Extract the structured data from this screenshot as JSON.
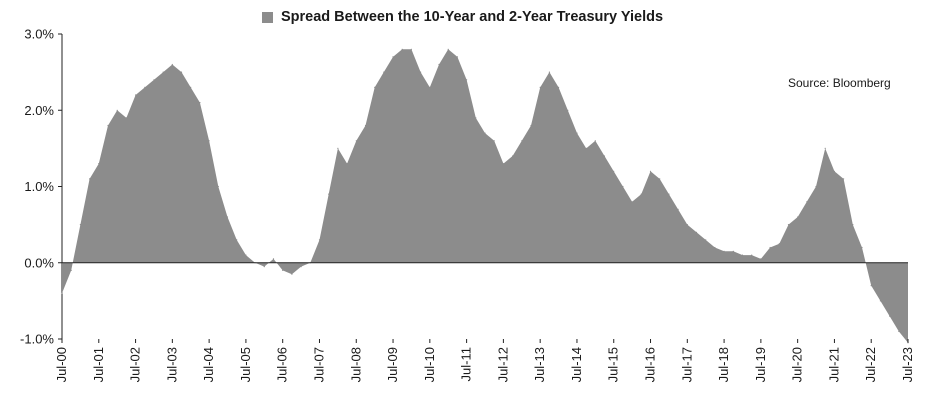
{
  "chart_data": {
    "type": "area",
    "title": "",
    "xlabel": "",
    "ylabel": "",
    "ylim": [
      -1.0,
      3.0
    ],
    "y_ticks": [
      "3.0%",
      "2.0%",
      "1.0%",
      "0.0%",
      "-1.0%"
    ],
    "y_tick_values": [
      3.0,
      2.0,
      1.0,
      0.0,
      -1.0
    ],
    "x_ticks": [
      "Jul-00",
      "Jul-01",
      "Jul-02",
      "Jul-03",
      "Jul-04",
      "Jul-05",
      "Jul-06",
      "Jul-07",
      "Jul-08",
      "Jul-09",
      "Jul-10",
      "Jul-11",
      "Jul-12",
      "Jul-13",
      "Jul-14",
      "Jul-15",
      "Jul-16",
      "Jul-17",
      "Jul-18",
      "Jul-19",
      "Jul-20",
      "Jul-21",
      "Jul-22",
      "Jul-23"
    ],
    "legend": "top-center",
    "grid": false,
    "fill_color": "#8c8c8c",
    "source_note": "Source: Bloomberg",
    "series": [
      {
        "name": "Spread Between the 10-Year and 2-Year Treasury Yields",
        "x": [
          "Jul-00",
          "Oct-00",
          "Jan-01",
          "Apr-01",
          "Jul-01",
          "Oct-01",
          "Jan-02",
          "Apr-02",
          "Jul-02",
          "Oct-02",
          "Jan-03",
          "Apr-03",
          "Jul-03",
          "Oct-03",
          "Jan-04",
          "Apr-04",
          "Jul-04",
          "Oct-04",
          "Jan-05",
          "Apr-05",
          "Jul-05",
          "Oct-05",
          "Jan-06",
          "Apr-06",
          "Jul-06",
          "Oct-06",
          "Jan-07",
          "Apr-07",
          "Jul-07",
          "Oct-07",
          "Jan-08",
          "Apr-08",
          "Jul-08",
          "Oct-08",
          "Jan-09",
          "Apr-09",
          "Jul-09",
          "Oct-09",
          "Jan-10",
          "Apr-10",
          "Jul-10",
          "Oct-10",
          "Jan-11",
          "Apr-11",
          "Jul-11",
          "Oct-11",
          "Jan-12",
          "Apr-12",
          "Jul-12",
          "Oct-12",
          "Jan-13",
          "Apr-13",
          "Jul-13",
          "Oct-13",
          "Jan-14",
          "Apr-14",
          "Jul-14",
          "Oct-14",
          "Jan-15",
          "Apr-15",
          "Jul-15",
          "Oct-15",
          "Jan-16",
          "Apr-16",
          "Jul-16",
          "Oct-16",
          "Jan-17",
          "Apr-17",
          "Jul-17",
          "Oct-17",
          "Jan-18",
          "Apr-18",
          "Jul-18",
          "Oct-18",
          "Jan-19",
          "Apr-19",
          "Jul-19",
          "Oct-19",
          "Jan-20",
          "Apr-20",
          "Jul-20",
          "Oct-20",
          "Jan-21",
          "Apr-21",
          "Jul-21",
          "Oct-21",
          "Jan-22",
          "Apr-22",
          "Jul-22",
          "Oct-22",
          "Jan-23",
          "Apr-23",
          "Jul-23"
        ],
        "values": [
          -0.4,
          -0.1,
          0.5,
          1.1,
          1.3,
          1.8,
          2.0,
          1.9,
          2.2,
          2.3,
          2.4,
          2.5,
          2.6,
          2.5,
          2.3,
          2.1,
          1.6,
          1.0,
          0.6,
          0.3,
          0.1,
          0.0,
          -0.05,
          0.05,
          -0.1,
          -0.15,
          -0.05,
          0.0,
          0.3,
          0.9,
          1.5,
          1.3,
          1.6,
          1.8,
          2.3,
          2.5,
          2.7,
          2.8,
          2.8,
          2.5,
          2.3,
          2.6,
          2.8,
          2.7,
          2.4,
          1.9,
          1.7,
          1.6,
          1.3,
          1.4,
          1.6,
          1.8,
          2.3,
          2.5,
          2.3,
          2.0,
          1.7,
          1.5,
          1.6,
          1.4,
          1.2,
          1.0,
          0.8,
          0.9,
          1.2,
          1.1,
          0.9,
          0.7,
          0.5,
          0.4,
          0.3,
          0.2,
          0.15,
          0.15,
          0.1,
          0.1,
          0.05,
          0.2,
          0.25,
          0.5,
          0.6,
          0.8,
          1.0,
          1.5,
          1.2,
          1.1,
          0.5,
          0.2,
          -0.3,
          -0.5,
          -0.7,
          -0.9,
          -1.05
        ]
      }
    ]
  }
}
